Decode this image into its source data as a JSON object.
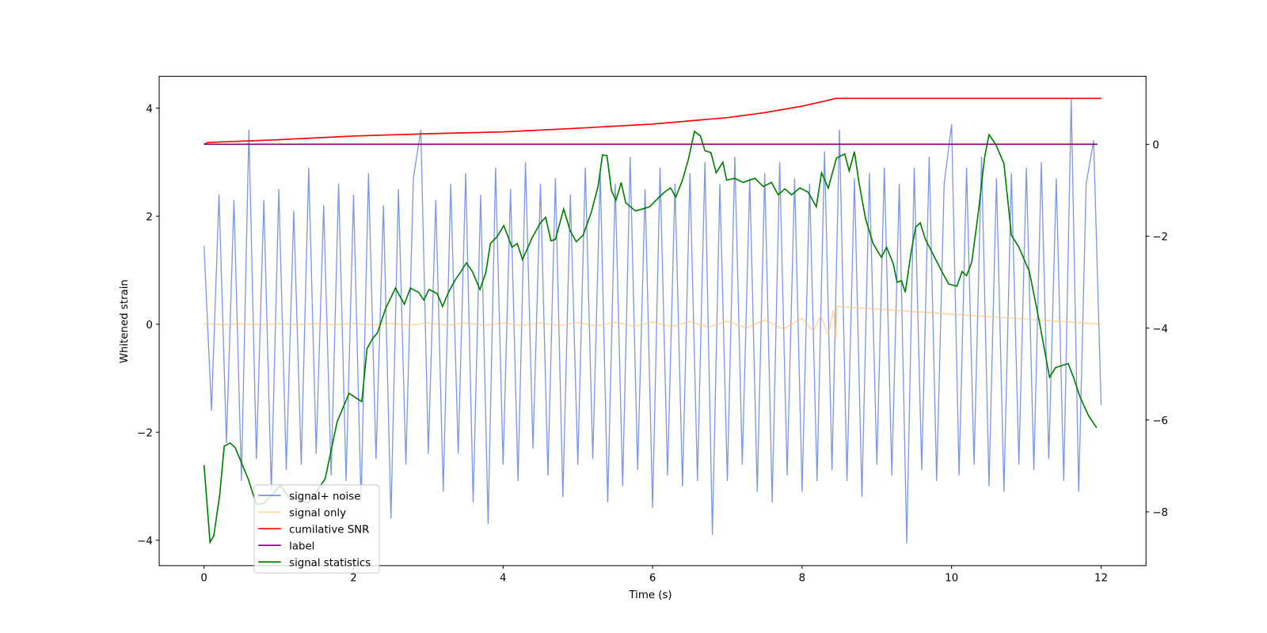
{
  "chart_data": {
    "type": "line",
    "xlabel": "Time (s)",
    "ylabel": "Whitened strain",
    "xlim": [
      -0.6,
      12.6
    ],
    "ylim": [
      -4.47,
      4.59
    ],
    "y2lim": [
      -9.17,
      1.48
    ],
    "xticks": [
      0,
      2,
      4,
      6,
      8,
      10,
      12
    ],
    "yticks": [
      {
        "value": -4,
        "label": "−4"
      },
      {
        "value": -2,
        "label": "−2"
      },
      0,
      2,
      4
    ],
    "y2ticks": [
      {
        "value": -8,
        "label": "−8"
      },
      {
        "value": -6,
        "label": "−6"
      },
      {
        "value": -4,
        "label": "−4"
      },
      {
        "value": -2,
        "label": "−2"
      },
      0
    ],
    "legend_loc": "lower left",
    "series": [
      {
        "name": "signal+ noise",
        "color": "#6f8ce6",
        "axis": "y",
        "x": [
          0,
          0.1,
          0.2,
          0.3,
          0.4,
          0.5,
          0.6,
          0.7,
          0.8,
          0.9,
          1,
          1.1,
          1.2,
          1.3,
          1.4,
          1.5,
          1.6,
          1.7,
          1.8,
          1.9,
          2,
          2.1,
          2.2,
          2.3,
          2.4,
          2.5,
          2.6,
          2.7,
          2.8,
          2.9,
          3,
          3.1,
          3.2,
          3.3,
          3.4,
          3.5,
          3.6,
          3.7,
          3.8,
          3.9,
          4,
          4.1,
          4.2,
          4.3,
          4.4,
          4.5,
          4.6,
          4.7,
          4.8,
          4.9,
          5,
          5.1,
          5.2,
          5.3,
          5.4,
          5.5,
          5.6,
          5.7,
          5.8,
          5.9,
          6,
          6.1,
          6.2,
          6.3,
          6.4,
          6.5,
          6.6,
          6.7,
          6.8,
          6.9,
          7,
          7.1,
          7.2,
          7.3,
          7.4,
          7.5,
          7.6,
          7.7,
          7.8,
          7.9,
          8,
          8.1,
          8.2,
          8.3,
          8.4,
          8.5,
          8.6,
          8.7,
          8.8,
          8.9,
          9,
          9.1,
          9.2,
          9.3,
          9.4,
          9.5,
          9.6,
          9.7,
          9.8,
          9.9,
          10,
          10.1,
          10.2,
          10.3,
          10.4,
          10.5,
          10.6,
          10.7,
          10.8,
          10.9,
          11,
          11.1,
          11.2,
          11.3,
          11.4,
          11.5,
          11.6,
          11.7,
          11.8,
          11.9,
          12
        ],
        "values": [
          1.45,
          -1.6,
          2.4,
          -2.2,
          2.3,
          -2.9,
          3.6,
          -2.5,
          2.3,
          -3.1,
          2.5,
          -2.7,
          2.1,
          -2.6,
          2.9,
          -2.4,
          2.2,
          -2.8,
          2.6,
          -2.9,
          2.4,
          -3.3,
          2.8,
          -2.5,
          2.2,
          -3.6,
          2.5,
          -2.6,
          2.7,
          3.6,
          -2.4,
          2.3,
          -3.1,
          2.6,
          -2.4,
          2.8,
          -3.3,
          2.4,
          -3.7,
          2.9,
          -2.6,
          2.5,
          -2.9,
          3.0,
          -2.3,
          2.6,
          -2.8,
          2.7,
          -3.2,
          2.4,
          -2.6,
          2.9,
          -2.5,
          2.8,
          -3.3,
          2.6,
          -3.0,
          3.1,
          -2.7,
          2.5,
          -3.4,
          2.9,
          -2.8,
          2.6,
          -3.0,
          2.8,
          -2.9,
          3.0,
          -3.9,
          2.6,
          -2.9,
          3.1,
          -2.6,
          2.7,
          -3.1,
          2.8,
          -3.3,
          3.0,
          -2.8,
          2.7,
          -3.1,
          2.6,
          -2.9,
          3.2,
          -2.7,
          3.6,
          -2.9,
          2.7,
          -3.2,
          2.8,
          -2.6,
          2.9,
          -2.8,
          2.6,
          -4.06,
          2.9,
          -2.7,
          3.1,
          -2.9,
          2.6,
          3.7,
          -2.8,
          2.9,
          -2.6,
          3.1,
          -3.0,
          2.7,
          -3.1,
          2.8,
          -2.6,
          2.9,
          -2.7,
          3.0,
          -2.5,
          2.7,
          -2.9,
          4.17,
          -3.1,
          2.6,
          3.4,
          -1.5
        ]
      },
      {
        "name": "signal only",
        "color": "#ffbf66",
        "axis": "y",
        "x": [
          0,
          0.25,
          0.5,
          0.75,
          1,
          1.25,
          1.5,
          1.75,
          2,
          2.25,
          2.5,
          2.75,
          3,
          3.25,
          3.5,
          3.75,
          4,
          4.25,
          4.5,
          4.75,
          5,
          5.25,
          5.5,
          5.75,
          6,
          6.25,
          6.5,
          6.75,
          7,
          7.25,
          7.5,
          7.75,
          8,
          8.15,
          8.25,
          8.35,
          8.42,
          8.45,
          8.47,
          12
        ],
        "values": [
          0.01,
          -0.01,
          0.01,
          -0.01,
          0.01,
          -0.01,
          0.01,
          -0.01,
          0.015,
          -0.015,
          0.015,
          -0.015,
          0.02,
          -0.02,
          0.02,
          -0.02,
          0.025,
          -0.025,
          0.025,
          -0.025,
          0.03,
          -0.03,
          0.035,
          -0.035,
          0.04,
          -0.045,
          0.05,
          -0.055,
          0.06,
          -0.07,
          0.08,
          -0.09,
          0.11,
          -0.13,
          0.16,
          -0.2,
          0.26,
          -0.3,
          0.33,
          0
        ]
      },
      {
        "name": "cumilative SNR",
        "color": "#ff0000",
        "axis": "y2",
        "x": [
          0,
          0.05,
          1,
          2,
          3,
          4,
          5,
          6,
          7,
          7.5,
          8,
          8.3,
          8.45,
          12
        ],
        "values": [
          0,
          0.04,
          0.1,
          0.18,
          0.23,
          0.27,
          0.35,
          0.44,
          0.58,
          0.69,
          0.83,
          0.94,
          1.0,
          1.0
        ]
      },
      {
        "name": "label",
        "color": "#800080",
        "axis": "y2",
        "x": [
          0,
          11.95
        ],
        "values": [
          0,
          0
        ]
      },
      {
        "name": "signal statistics",
        "color": "#008000",
        "axis": "y2",
        "x": [
          0,
          0.08,
          0.13,
          0.21,
          0.27,
          0.35,
          0.42,
          0.5,
          0.59,
          0.7,
          0.8,
          0.91,
          1.02,
          1.13,
          1.4,
          1.62,
          1.78,
          1.94,
          2.11,
          2.18,
          2.25,
          2.32,
          2.43,
          2.56,
          2.68,
          2.76,
          2.87,
          2.94,
          3.01,
          3.12,
          3.19,
          3.27,
          3.36,
          3.42,
          3.51,
          3.59,
          3.69,
          3.77,
          3.83,
          3.92,
          4.01,
          4.12,
          4.19,
          4.26,
          4.39,
          4.5,
          4.57,
          4.64,
          4.7,
          4.81,
          4.9,
          4.98,
          5.07,
          5.18,
          5.27,
          5.33,
          5.39,
          5.45,
          5.51,
          5.58,
          5.64,
          5.77,
          5.88,
          5.96,
          6.07,
          6.16,
          6.24,
          6.31,
          6.4,
          6.48,
          6.56,
          6.64,
          6.7,
          6.78,
          6.85,
          6.94,
          6.99,
          7.1,
          7.21,
          7.37,
          7.48,
          7.59,
          7.68,
          7.77,
          7.86,
          7.97,
          8.08,
          8.19,
          8.26,
          8.35,
          8.46,
          8.57,
          8.63,
          8.7,
          8.76,
          8.85,
          8.95,
          9.06,
          9.13,
          9.22,
          9.27,
          9.33,
          9.38,
          9.46,
          9.52,
          9.58,
          9.65,
          9.76,
          9.87,
          9.96,
          10.07,
          10.14,
          10.2,
          10.27,
          10.36,
          10.44,
          10.5,
          10.59,
          10.7,
          10.8,
          10.9,
          11.04,
          11.17,
          11.31,
          11.39,
          11.56,
          11.63,
          11.72,
          11.83,
          11.94
        ],
        "values": [
          -6.98,
          -8.66,
          -8.52,
          -7.63,
          -6.57,
          -6.5,
          -6.61,
          -6.93,
          -7.28,
          -7.84,
          -7.81,
          -7.63,
          -7.42,
          -7.67,
          -7.81,
          -7.28,
          -6.04,
          -5.42,
          -5.6,
          -4.45,
          -4.24,
          -4.1,
          -3.57,
          -3.13,
          -3.48,
          -3.13,
          -3.22,
          -3.39,
          -3.16,
          -3.25,
          -3.53,
          -3.22,
          -2.95,
          -2.81,
          -2.58,
          -2.77,
          -3.16,
          -2.79,
          -2.16,
          -2.01,
          -1.77,
          -2.24,
          -2.16,
          -2.51,
          -2.03,
          -1.71,
          -1.59,
          -2.1,
          -2.07,
          -1.41,
          -1.89,
          -2.12,
          -1.98,
          -1.48,
          -0.92,
          -0.23,
          -0.25,
          -1.01,
          -1.22,
          -0.83,
          -1.27,
          -1.45,
          -1.4,
          -1.36,
          -1.18,
          -1.04,
          -0.95,
          -1.15,
          -0.78,
          -0.32,
          0.28,
          0.18,
          -0.14,
          -0.18,
          -0.62,
          -0.39,
          -0.78,
          -0.74,
          -0.83,
          -0.74,
          -0.92,
          -0.83,
          -1.1,
          -0.97,
          -1.1,
          -0.95,
          -1.04,
          -1.36,
          -0.62,
          -0.95,
          -0.3,
          -0.21,
          -0.58,
          -0.16,
          -0.83,
          -1.63,
          -2.16,
          -2.46,
          -2.24,
          -2.6,
          -3.0,
          -2.97,
          -3.22,
          -2.33,
          -1.8,
          -1.71,
          -2.07,
          -2.42,
          -2.77,
          -3.04,
          -3.09,
          -2.77,
          -2.86,
          -2.56,
          -1.45,
          -0.3,
          0.21,
          0,
          -0.42,
          -1.98,
          -2.24,
          -2.77,
          -3.83,
          -5.07,
          -4.86,
          -4.77,
          -5.07,
          -5.51,
          -5.9,
          -6.17
        ]
      }
    ]
  }
}
